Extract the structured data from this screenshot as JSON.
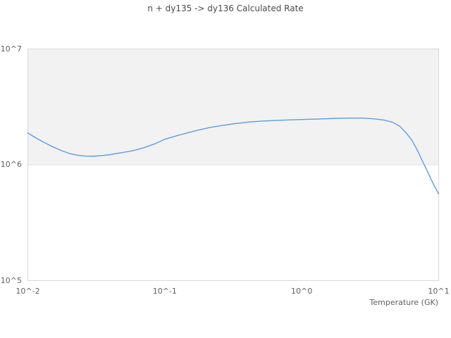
{
  "chart": {
    "title": "n + dy135 -> dy136 Calculated Rate",
    "x_axis_title": "Temperature (GK)"
  },
  "colors": {
    "line": "#5f9dde",
    "band_fill": "#f2f2f2",
    "plot_border": "#d9d9d9",
    "gridline": "#e2e2e2",
    "title_text": "#4a4a4a",
    "label_text": "#606060",
    "background": "#ffffff"
  },
  "chart_data": {
    "type": "line",
    "title": "n + dy135 -> dy136 Calculated Rate",
    "xlabel": "Temperature (GK)",
    "ylabel": "",
    "x_scale": "log",
    "y_scale": "log",
    "xlim": [
      0.01,
      10
    ],
    "ylim": [
      100000,
      10000000
    ],
    "grid": "off",
    "legend": false,
    "shaded_band": {
      "y_from": 1000000,
      "y_to": 10000000
    },
    "x_ticks": [
      {
        "value": 0.01,
        "label": "10^-2"
      },
      {
        "value": 0.1,
        "label": "10^-1"
      },
      {
        "value": 1,
        "label": "10^0"
      },
      {
        "value": 10,
        "label": "10^1"
      }
    ],
    "y_ticks": [
      {
        "value": 100000,
        "label": "10^5"
      },
      {
        "value": 1000000,
        "label": "10^6"
      },
      {
        "value": 10000000,
        "label": "10^7"
      }
    ],
    "series": [
      {
        "name": "calculated-rate",
        "color": "#5f9dde",
        "points": [
          [
            0.01,
            1880000
          ],
          [
            0.0115,
            1700000
          ],
          [
            0.013,
            1570000
          ],
          [
            0.015,
            1440000
          ],
          [
            0.0175,
            1330000
          ],
          [
            0.02,
            1255000
          ],
          [
            0.023,
            1210000
          ],
          [
            0.026,
            1190000
          ],
          [
            0.03,
            1185000
          ],
          [
            0.035,
            1200000
          ],
          [
            0.04,
            1225000
          ],
          [
            0.048,
            1270000
          ],
          [
            0.058,
            1320000
          ],
          [
            0.07,
            1400000
          ],
          [
            0.085,
            1520000
          ],
          [
            0.1,
            1660000
          ],
          [
            0.12,
            1770000
          ],
          [
            0.145,
            1880000
          ],
          [
            0.175,
            1990000
          ],
          [
            0.21,
            2090000
          ],
          [
            0.26,
            2180000
          ],
          [
            0.32,
            2260000
          ],
          [
            0.4,
            2330000
          ],
          [
            0.5,
            2380000
          ],
          [
            0.63,
            2410000
          ],
          [
            0.8,
            2440000
          ],
          [
            1.0,
            2460000
          ],
          [
            1.3,
            2480000
          ],
          [
            1.7,
            2510000
          ],
          [
            2.2,
            2530000
          ],
          [
            2.8,
            2530000
          ],
          [
            3.4,
            2490000
          ],
          [
            4.0,
            2430000
          ],
          [
            4.6,
            2330000
          ],
          [
            5.2,
            2150000
          ],
          [
            5.8,
            1880000
          ],
          [
            6.4,
            1620000
          ],
          [
            7.0,
            1330000
          ],
          [
            7.6,
            1080000
          ],
          [
            8.2,
            900000
          ],
          [
            8.8,
            750000
          ],
          [
            9.4,
            640000
          ],
          [
            10.0,
            560000
          ]
        ]
      }
    ]
  }
}
